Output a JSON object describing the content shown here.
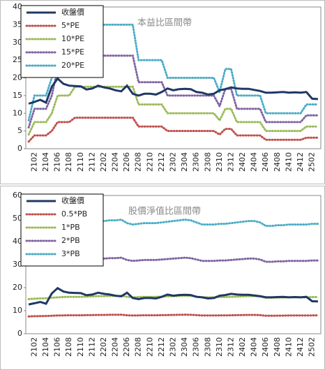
{
  "chart_data": [
    {
      "type": "line",
      "title": "本益比區間帶",
      "categories": [
        null,
        "2102",
        null,
        "2104",
        null,
        "2106",
        null,
        "2108",
        null,
        "2110",
        null,
        "2112",
        null,
        "2202",
        null,
        "2204",
        null,
        "2206",
        null,
        "2208",
        null,
        "2210",
        null,
        "2212",
        null,
        "2302",
        null,
        "2304",
        null,
        "2306",
        null,
        "2308",
        null,
        "2310",
        null,
        "2312",
        null,
        "2402",
        null,
        "2404",
        null,
        "2406",
        null,
        "2408",
        null,
        "2410",
        null,
        "2412",
        null,
        "2502",
        null
      ],
      "ylim": [
        0,
        40
      ],
      "yticks": [
        0,
        5,
        10,
        15,
        20,
        25,
        30,
        35,
        40
      ],
      "grid": false,
      "legend": "top-left",
      "series": [
        {
          "name": "收盤價",
          "color": "#1f3864",
          "style": "solid",
          "values": [
            12.7,
            13.2,
            13.8,
            13.0,
            17.5,
            19.8,
            18.3,
            17.8,
            17.7,
            17.6,
            16.7,
            17.0,
            17.8,
            17.3,
            17.0,
            16.5,
            16.2,
            17.8,
            15.5,
            15.0,
            15.5,
            15.5,
            15.3,
            16.0,
            17.0,
            16.5,
            16.8,
            16.9,
            16.8,
            16.0,
            15.8,
            15.3,
            15.5,
            16.5,
            16.8,
            17.3,
            17.0,
            16.9,
            16.9,
            16.6,
            16.3,
            15.8,
            15.8,
            15.9,
            16.0,
            15.8,
            15.9,
            15.8,
            16.0,
            14.1,
            14.0
          ]
        },
        {
          "name": "5*PE",
          "color": "#c0504d",
          "style": "dotted",
          "values": [
            2,
            3.75,
            3.75,
            3.75,
            5,
            7.5,
            7.5,
            7.5,
            8.75,
            8.75,
            8.75,
            8.75,
            8.75,
            8.75,
            8.75,
            8.75,
            8.75,
            8.75,
            8.75,
            6.25,
            6.25,
            6.25,
            6.25,
            6.25,
            5,
            5,
            5,
            5,
            5,
            5,
            5,
            5,
            5,
            4,
            5.6,
            5.6,
            3.75,
            3.75,
            3.75,
            3.75,
            3.75,
            2.5,
            2.5,
            2.5,
            2.5,
            2.5,
            2.5,
            2.5,
            3.1,
            3.1,
            3.1
          ]
        },
        {
          "name": "10*PE",
          "color": "#9bbb59",
          "style": "dotted",
          "values": [
            4,
            7.5,
            7.5,
            7.5,
            10,
            15,
            15,
            15,
            17.5,
            17.5,
            17.5,
            17.5,
            17.5,
            17.5,
            17.5,
            17.5,
            17.5,
            17.5,
            17.5,
            12.5,
            12.5,
            12.5,
            12.5,
            12.5,
            10,
            10,
            10,
            10,
            10,
            10,
            10,
            10,
            10,
            8,
            11.25,
            11.25,
            7.5,
            7.5,
            7.5,
            7.5,
            7.5,
            5,
            5,
            5,
            5,
            5,
            5,
            5,
            6.25,
            6.25,
            6.25
          ]
        },
        {
          "name": "15*PE",
          "color": "#8064a2",
          "style": "dotted",
          "values": [
            6,
            11.25,
            11.25,
            11.25,
            15,
            22.5,
            22.5,
            22.5,
            26.25,
            26.25,
            26.25,
            26.25,
            26.25,
            26.25,
            26.25,
            26.25,
            26.25,
            26.25,
            26.25,
            18.75,
            18.75,
            18.75,
            18.75,
            18.75,
            15,
            15,
            15,
            15,
            15,
            15,
            15,
            15,
            15,
            12,
            16.9,
            16.9,
            11.25,
            11.25,
            11.25,
            11.25,
            11.25,
            7.5,
            7.5,
            7.5,
            7.5,
            7.5,
            7.5,
            7.5,
            9.4,
            9.4,
            9.4
          ]
        },
        {
          "name": "20*PE",
          "color": "#4bacc6",
          "style": "dotted",
          "values": [
            8,
            15,
            15,
            15,
            20,
            30,
            30,
            30,
            35,
            35,
            35,
            35,
            35,
            35,
            35,
            35,
            35,
            35,
            35,
            25,
            25,
            25,
            25,
            25,
            20,
            20,
            20,
            20,
            20,
            20,
            20,
            20,
            20,
            16,
            22.5,
            22.5,
            15,
            15,
            15,
            15,
            15,
            10,
            10,
            10,
            10,
            10,
            10,
            10,
            12.5,
            12.5,
            12.5
          ]
        }
      ]
    },
    {
      "type": "line",
      "title": "股價淨值比區間帶",
      "categories": [
        null,
        "2102",
        null,
        "2104",
        null,
        "2106",
        null,
        "2108",
        null,
        "2110",
        null,
        "2112",
        null,
        "2202",
        null,
        "2204",
        null,
        "2206",
        null,
        "2208",
        null,
        "2210",
        null,
        "2212",
        null,
        "2302",
        null,
        "2304",
        null,
        "2306",
        null,
        "2308",
        null,
        "2310",
        null,
        "2312",
        null,
        "2402",
        null,
        "2404",
        null,
        "2406",
        null,
        "2408",
        null,
        "2410",
        null,
        "2412",
        null,
        "2502",
        null
      ],
      "ylim": [
        0,
        60
      ],
      "yticks": [
        0,
        10,
        20,
        30,
        40,
        50,
        60
      ],
      "grid": false,
      "legend": "top-left",
      "series": [
        {
          "name": "收盤價",
          "color": "#1f3864",
          "style": "solid",
          "values": [
            12.7,
            13.2,
            13.8,
            13.0,
            17.5,
            19.8,
            18.3,
            17.8,
            17.7,
            17.6,
            16.7,
            17.0,
            17.8,
            17.3,
            17.0,
            16.5,
            16.2,
            17.8,
            15.5,
            15.0,
            15.5,
            15.5,
            15.3,
            16.0,
            17.0,
            16.5,
            16.8,
            16.9,
            16.8,
            16.0,
            15.8,
            15.3,
            15.5,
            16.5,
            16.8,
            17.3,
            17.0,
            16.9,
            16.9,
            16.6,
            16.3,
            15.8,
            15.8,
            15.9,
            16.0,
            15.8,
            15.9,
            15.8,
            16.0,
            14.1,
            14.0
          ]
        },
        {
          "name": "0.5*PB",
          "color": "#c0504d",
          "style": "dotted",
          "values": [
            7.5,
            7.6,
            7.65,
            7.7,
            7.8,
            7.9,
            7.95,
            8,
            8,
            8,
            8.05,
            8.1,
            8.15,
            8.15,
            8.2,
            8.2,
            8.25,
            8,
            7.9,
            7.95,
            8,
            8,
            8,
            8.05,
            8.1,
            8.15,
            8.2,
            8.25,
            8.2,
            8.05,
            7.9,
            7.9,
            7.9,
            7.95,
            7.95,
            8,
            8.05,
            8.1,
            8.15,
            8.15,
            8.05,
            7.8,
            7.8,
            7.85,
            7.85,
            7.9,
            7.9,
            7.9,
            7.9,
            7.95,
            7.95
          ]
        },
        {
          "name": "1*PB",
          "color": "#9bbb59",
          "style": "dotted",
          "values": [
            15,
            15.2,
            15.3,
            15.4,
            15.6,
            15.8,
            15.9,
            16,
            16,
            16,
            16.1,
            16.2,
            16.3,
            16.3,
            16.4,
            16.4,
            16.5,
            16,
            15.8,
            15.9,
            16,
            16,
            16,
            16.1,
            16.2,
            16.3,
            16.4,
            16.5,
            16.4,
            16.1,
            15.8,
            15.8,
            15.8,
            15.9,
            15.9,
            16,
            16.1,
            16.2,
            16.3,
            16.3,
            16.1,
            15.6,
            15.6,
            15.7,
            15.7,
            15.8,
            15.8,
            15.8,
            15.8,
            15.9,
            15.9
          ]
        },
        {
          "name": "2*PB",
          "color": "#8064a2",
          "style": "dotted",
          "values": [
            30,
            30.4,
            30.6,
            30.8,
            31.2,
            31.6,
            31.8,
            32,
            32,
            32,
            32.2,
            32.4,
            32.6,
            32.6,
            32.8,
            32.8,
            33,
            32,
            31.6,
            31.8,
            32,
            32,
            32,
            32.2,
            32.4,
            32.6,
            32.8,
            33,
            32.8,
            32.2,
            31.6,
            31.6,
            31.6,
            31.8,
            31.8,
            32,
            32.2,
            32.4,
            32.6,
            32.6,
            32.2,
            31.2,
            31.2,
            31.4,
            31.4,
            31.6,
            31.6,
            31.6,
            31.6,
            31.8,
            31.8
          ]
        },
        {
          "name": "3*PB",
          "color": "#4bacc6",
          "style": "dotted",
          "values": [
            45,
            45.6,
            45.9,
            46.2,
            46.8,
            47.4,
            47.7,
            48,
            48,
            48,
            48.3,
            48.6,
            48.9,
            48.9,
            49.2,
            49.2,
            49.5,
            48,
            47.4,
            47.7,
            48,
            48,
            48,
            48.3,
            48.6,
            48.9,
            49.2,
            49.5,
            49.2,
            48.3,
            47.4,
            47.4,
            47.4,
            47.7,
            47.7,
            48,
            48.3,
            48.6,
            48.9,
            48.9,
            48.3,
            46.8,
            46.8,
            47.1,
            47.1,
            47.4,
            47.4,
            47.4,
            47.4,
            47.7,
            47.7
          ]
        }
      ]
    }
  ]
}
